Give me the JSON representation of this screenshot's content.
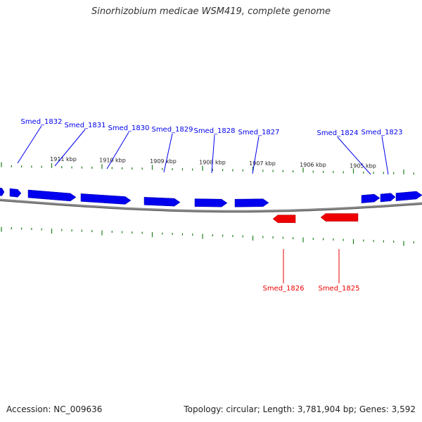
{
  "title": "Sinorhizobium medicae WSM419, complete genome",
  "footer": {
    "accession": "Accession: NC_009636",
    "summary": "Topology: circular; Length: 3,781,904 bp; Genes: 3,592"
  },
  "colors": {
    "forward_gene": "#0000ee",
    "reverse_gene": "#ee0000",
    "tick": "#1a7f1a",
    "backbone": "#888888"
  },
  "scale": {
    "unit": "kbp",
    "labels": [
      {
        "kbp": 1911,
        "text": "1911 kbp"
      },
      {
        "kbp": 1910,
        "text": "1910 kbp"
      },
      {
        "kbp": 1909,
        "text": "1909 kbp"
      },
      {
        "kbp": 1908,
        "text": "1908 kbp"
      },
      {
        "kbp": 1907,
        "text": "1907 kbp"
      },
      {
        "kbp": 1906,
        "text": "1906 kbp"
      },
      {
        "kbp": 1905,
        "text": "1905 kbp"
      }
    ]
  },
  "genes": {
    "forward": [
      {
        "name": "Smed_1832",
        "labeled": true
      },
      {
        "name": "Smed_1831",
        "labeled": true
      },
      {
        "name": "Smed_1830",
        "labeled": true
      },
      {
        "name": "Smed_1829",
        "labeled": true
      },
      {
        "name": "Smed_1828",
        "labeled": true
      },
      {
        "name": "Smed_1827",
        "labeled": true
      },
      {
        "name": "Smed_1824",
        "labeled": true
      },
      {
        "name": "Smed_1823",
        "labeled": true
      }
    ],
    "reverse": [
      {
        "name": "Smed_1826",
        "labeled": true
      },
      {
        "name": "Smed_1825",
        "labeled": true
      }
    ]
  }
}
